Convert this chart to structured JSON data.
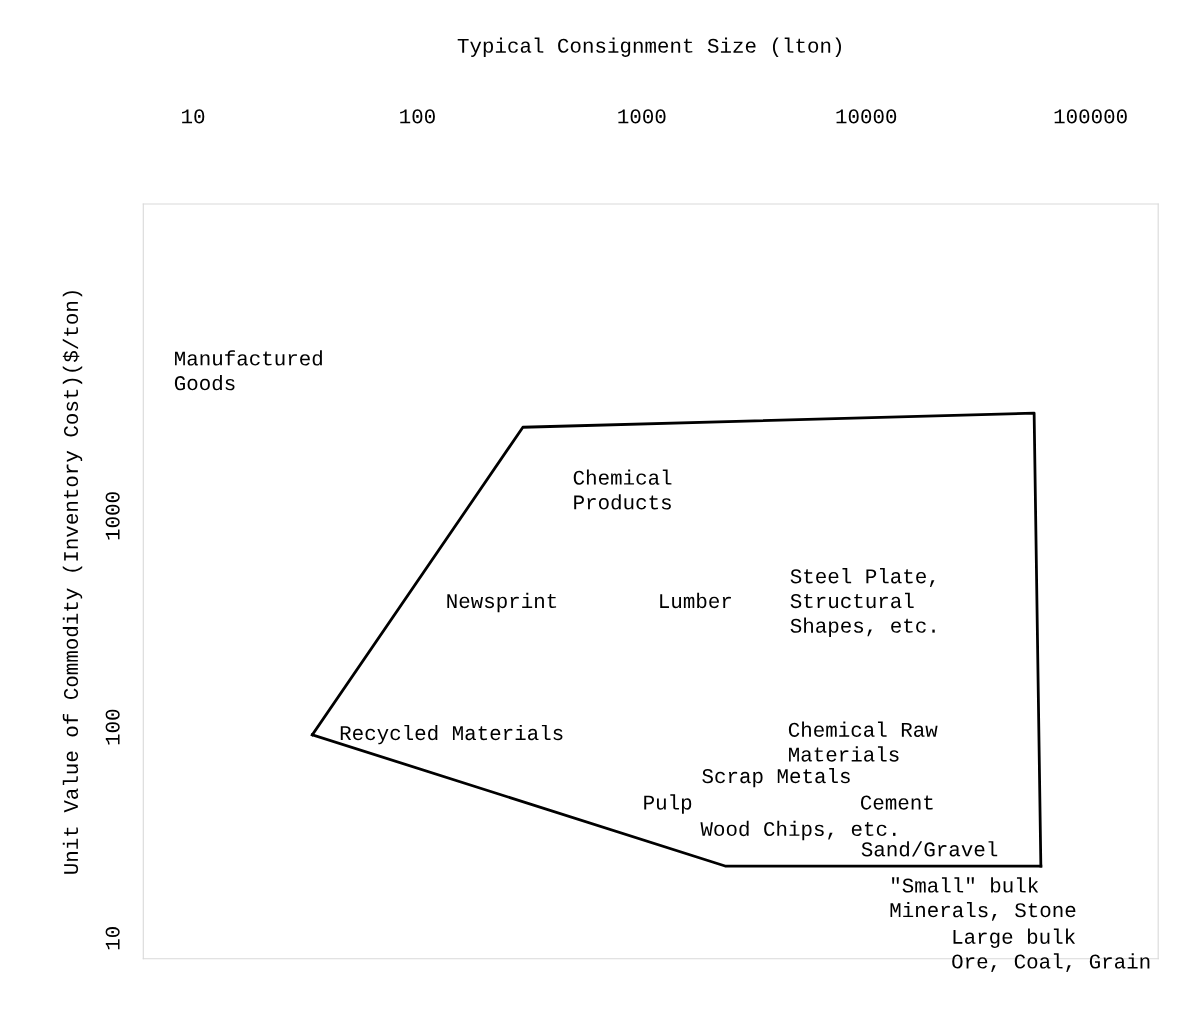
{
  "chart_data": {
    "type": "line",
    "xlabel": "Typical Consignment Size (lton)",
    "ylabel": "Unit Value of Commodity (Inventory Cost)($/ton)",
    "series": [
      {
        "color": "#000000",
        "x": [
          34,
          295,
          56000,
          60000
        ],
        "values": [
          92,
          2630,
          3070,
          22
        ]
      },
      {
        "color": "#000000",
        "x": [
          34,
          2350,
          60000
        ],
        "values": [
          92,
          22,
          22
        ]
      }
    ],
    "log": "xy",
    "xlim": [
      6,
      200000
    ],
    "ylim": [
      8,
      30000
    ],
    "xticks": [
      10,
      100,
      1000,
      10000,
      100000
    ],
    "yticks": [
      10,
      100,
      1000
    ],
    "grid": false,
    "marker": "none",
    "line_style": "solid",
    "annotations": [
      "Manufactured\nGoods",
      "Chemical\nProducts",
      "Steel Plate,\nStructural\nShapes, etc.",
      "Newsprint",
      "Lumber",
      "Recycled Materials",
      "Chemical Raw\nMaterials",
      "Scrap Metals",
      "Pulp",
      "Cement",
      "Wood Chips, etc.",
      "Sand/Gravel",
      "\"Small\" bulk\nMinerals, Stone",
      "Large bulk\nOre, Coal, Grain"
    ]
  }
}
